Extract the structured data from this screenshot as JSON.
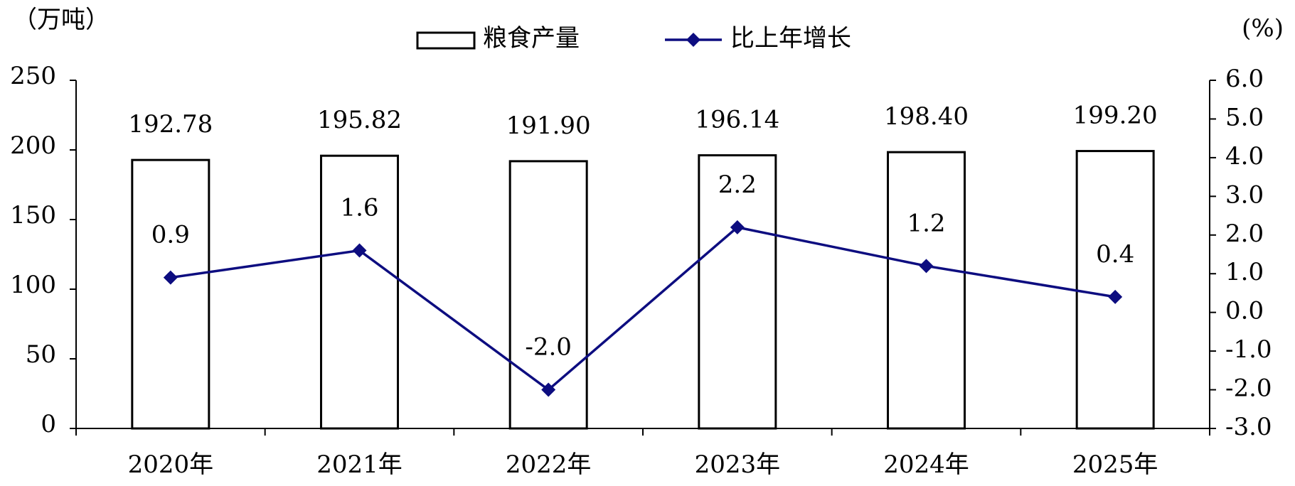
{
  "chart_data": {
    "type": "combo",
    "y_label": "（万吨）",
    "y2_label": "(%)",
    "categories": [
      "2020年",
      "2021年",
      "2022年",
      "2023年",
      "2024年",
      "2025年"
    ],
    "series": [
      {
        "name": "粮食产量",
        "type": "bar",
        "color": "#ffffff",
        "edge_color": "#000000",
        "values": [
          192.78,
          195.82,
          191.9,
          196.14,
          198.4,
          199.2
        ],
        "value_labels": [
          "192.78",
          "195.82",
          "191.90",
          "196.14",
          "198.40",
          "199.20"
        ]
      },
      {
        "name": "比上年增长",
        "type": "line",
        "axis": "y2",
        "color": "#0d0d80",
        "values": [
          0.9,
          1.6,
          -2.0,
          2.2,
          1.2,
          0.4
        ],
        "value_labels": [
          "0.9",
          "1.6",
          "-2.0",
          "2.2",
          "1.2",
          "0.4"
        ]
      }
    ],
    "ylim": [
      0,
      250
    ],
    "yticks": [
      0,
      50,
      100,
      150,
      200,
      250
    ],
    "y2lim": [
      -3,
      6
    ],
    "y2ticks": [
      {
        "value": -3,
        "label": "-3.0"
      },
      {
        "value": -2,
        "label": "-2.0"
      },
      {
        "value": -1,
        "label": "-1.0"
      },
      {
        "value": 0,
        "label": "0.0"
      },
      {
        "value": 1,
        "label": "1.0"
      },
      {
        "value": 2,
        "label": "2.0"
      },
      {
        "value": 3,
        "label": "3.0"
      },
      {
        "value": 4,
        "label": "4.0"
      },
      {
        "value": 5,
        "label": "5.0"
      },
      {
        "value": 6,
        "label": "6.0"
      }
    ],
    "grid": false,
    "legend": "top"
  }
}
